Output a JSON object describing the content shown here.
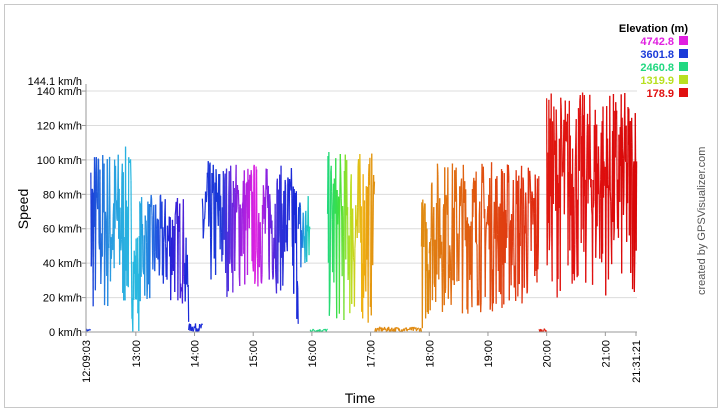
{
  "chart_data": {
    "type": "line",
    "xlabel": "Time",
    "ylabel": "Speed",
    "y_max_label": "144.1 km/h",
    "y_ticks": [
      {
        "value": 0,
        "label": "0 km/h"
      },
      {
        "value": 20,
        "label": "20 km/h"
      },
      {
        "value": 40,
        "label": "40 km/h"
      },
      {
        "value": 60,
        "label": "60 km/h"
      },
      {
        "value": 80,
        "label": "80 km/h"
      },
      {
        "value": 100,
        "label": "100 km/h"
      },
      {
        "value": 120,
        "label": "120 km/h"
      },
      {
        "value": 140,
        "label": "140 km/h"
      }
    ],
    "ylim": [
      0,
      144.1
    ],
    "xlim_minutes": [
      729.05,
      1291.35
    ],
    "x_ticks": [
      {
        "minutes": 729.05,
        "label": "12:09:03"
      },
      {
        "minutes": 780,
        "label": "13:00"
      },
      {
        "minutes": 840,
        "label": "14:00"
      },
      {
        "minutes": 900,
        "label": "15:00"
      },
      {
        "minutes": 960,
        "label": "16:00"
      },
      {
        "minutes": 1020,
        "label": "17:00"
      },
      {
        "minutes": 1080,
        "label": "18:00"
      },
      {
        "minutes": 1140,
        "label": "19:00"
      },
      {
        "minutes": 1200,
        "label": "20:00"
      },
      {
        "minutes": 1260,
        "label": "21:00"
      },
      {
        "minutes": 1291.35,
        "label": "21:31:21"
      }
    ],
    "legend": {
      "title": "Elevation (m)",
      "entries": [
        {
          "label": "4742.8",
          "color": "#e020e0"
        },
        {
          "label": "3601.8",
          "color": "#1a3ad8"
        },
        {
          "label": "2460.8",
          "color": "#20d880"
        },
        {
          "label": "1319.9",
          "color": "#b8e020"
        },
        {
          "label": "178.9",
          "color": "#e01010"
        }
      ]
    },
    "segments": [
      {
        "start": 729.05,
        "end": 734,
        "min": 0,
        "max": 2,
        "colors": [
          "#1a3ad8",
          "#1a3ad8"
        ]
      },
      {
        "start": 734,
        "end": 776,
        "min": 5,
        "max": 108,
        "colors": [
          "#1a3ad8",
          "#2a9ce0",
          "#28b8e0"
        ]
      },
      {
        "start": 776,
        "end": 784,
        "min": 0,
        "max": 60,
        "colors": [
          "#28b8e0",
          "#28b8e0"
        ]
      },
      {
        "start": 784,
        "end": 830,
        "min": 15,
        "max": 80,
        "colors": [
          "#28b0e0",
          "#2060e0",
          "#2222d8",
          "#5020d8"
        ]
      },
      {
        "start": 830,
        "end": 834,
        "min": 0,
        "max": 55,
        "colors": [
          "#1a2ad8",
          "#1a2ad8"
        ]
      },
      {
        "start": 834,
        "end": 848,
        "min": 0,
        "max": 5,
        "colors": [
          "#1a2ad8",
          "#1a2ad8"
        ]
      },
      {
        "start": 848,
        "end": 903,
        "min": 20,
        "max": 100,
        "colors": [
          "#1a30d8",
          "#1a3ad8",
          "#8a20e0",
          "#e020e0"
        ]
      },
      {
        "start": 903,
        "end": 940,
        "min": 22,
        "max": 97,
        "colors": [
          "#e020e0",
          "#8020e0",
          "#3030d8",
          "#1a2ad8"
        ]
      },
      {
        "start": 940,
        "end": 946,
        "min": 0,
        "max": 95,
        "colors": [
          "#1a2ad8",
          "#1a2ad8"
        ]
      },
      {
        "start": 946,
        "end": 958,
        "min": 20,
        "max": 82,
        "colors": [
          "#1a2ad8",
          "#20a0e0",
          "#20d8b0"
        ]
      },
      {
        "start": 958,
        "end": 976,
        "min": 0,
        "max": 2,
        "colors": [
          "#20d880",
          "#20d880"
        ]
      },
      {
        "start": 976,
        "end": 1024,
        "min": 2,
        "max": 105,
        "colors": [
          "#20d880",
          "#40e040",
          "#b8e020",
          "#f0b010",
          "#e09010"
        ]
      },
      {
        "start": 1024,
        "end": 1072,
        "min": 0,
        "max": 3,
        "colors": [
          "#e08a10",
          "#e08a10"
        ]
      },
      {
        "start": 1072,
        "end": 1080,
        "min": 0,
        "max": 80,
        "colors": [
          "#e08a10",
          "#e08a10"
        ]
      },
      {
        "start": 1080,
        "end": 1192,
        "min": 10,
        "max": 100,
        "colors": [
          "#e08010",
          "#e06010",
          "#e04010",
          "#e02a10"
        ]
      },
      {
        "start": 1192,
        "end": 1200,
        "min": 0,
        "max": 2,
        "colors": [
          "#e02010",
          "#e02010"
        ]
      },
      {
        "start": 1200,
        "end": 1292,
        "min": 20,
        "max": 140,
        "colors": [
          "#e01810",
          "#e01010",
          "#d80808"
        ]
      }
    ]
  },
  "credit": "created by GPSVisualizer.com"
}
